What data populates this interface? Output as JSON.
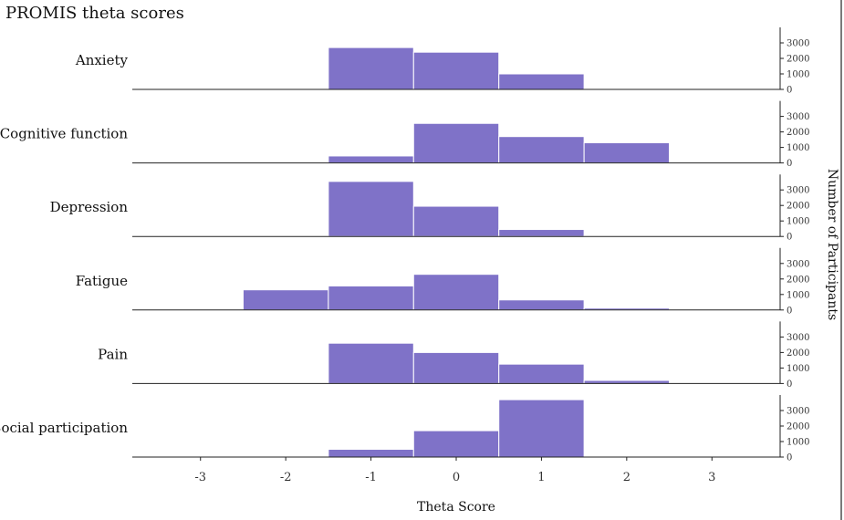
{
  "chart_data": {
    "type": "bar",
    "title": "PROMIS theta scores",
    "xlabel": "Theta Score",
    "ylabel": "Number of Participants",
    "x_ticks": [
      "-3",
      "-2",
      "-1",
      "0",
      "1",
      "2",
      "3"
    ],
    "y_ticks": [
      "0",
      "1000",
      "2000",
      "3000"
    ],
    "xlim": [
      -3.8,
      3.8
    ],
    "ylim": [
      0,
      4000
    ],
    "bin_width": 1,
    "bin_centers": [
      -3,
      -2,
      -1,
      0,
      1,
      2,
      3
    ],
    "color": "#7f72c8",
    "series": [
      {
        "name": "Anxiety",
        "values": [
          0,
          0,
          2700,
          2400,
          1000,
          20,
          10
        ]
      },
      {
        "name": "Cognitive function",
        "values": [
          0,
          0,
          450,
          2550,
          1700,
          1300,
          0
        ]
      },
      {
        "name": "Depression",
        "values": [
          0,
          0,
          3550,
          1950,
          450,
          40,
          0
        ]
      },
      {
        "name": "Fatigue",
        "values": [
          0,
          1300,
          1550,
          2300,
          650,
          120,
          0
        ]
      },
      {
        "name": "Pain",
        "values": [
          0,
          0,
          2600,
          2000,
          1250,
          200,
          0
        ]
      },
      {
        "name": "Social participation",
        "values": [
          0,
          20,
          500,
          1700,
          3700,
          0,
          0
        ]
      }
    ]
  }
}
